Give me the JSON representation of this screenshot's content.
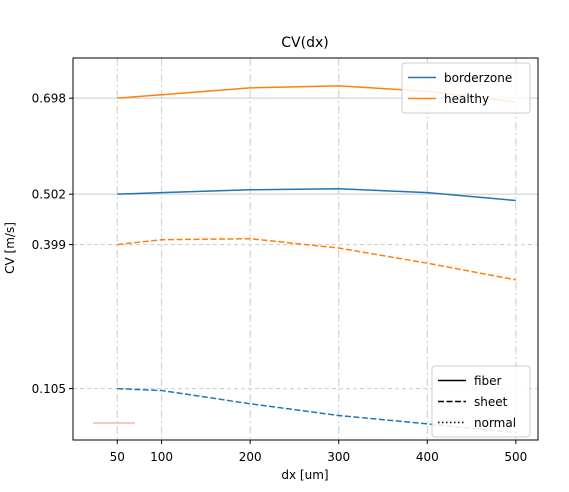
{
  "chart_data": {
    "type": "line",
    "title": "CV(dx)",
    "xlabel": "dx [um]",
    "ylabel": "CV [m/s]",
    "x": [
      50,
      100,
      200,
      300,
      400,
      500
    ],
    "xlim": [
      0,
      525
    ],
    "ylim": [
      0.0,
      0.78
    ],
    "xticks": [
      50,
      100,
      200,
      300,
      400,
      500
    ],
    "yticks": [
      0.105,
      0.399,
      0.502,
      0.698
    ],
    "ytick_labels": [
      "0.105",
      "0.399",
      "0.502",
      "0.698"
    ],
    "series": [
      {
        "name": "borderzone",
        "color": "#1f77b4",
        "linestyle": "solid",
        "values": [
          0.502,
          0.505,
          0.511,
          0.513,
          0.505,
          0.489
        ]
      },
      {
        "name": "healthy",
        "color": "#ff7f0e",
        "linestyle": "solid",
        "values": [
          0.698,
          0.705,
          0.719,
          0.723,
          0.712,
          0.69
        ]
      },
      {
        "name": "",
        "color": "#ff7f0e",
        "linestyle": "dashed",
        "values": [
          0.399,
          0.409,
          0.411,
          0.392,
          0.361,
          0.327
        ]
      },
      {
        "name": "",
        "color": "#1f77b4",
        "linestyle": "dashed",
        "values": [
          0.105,
          0.101,
          0.074,
          0.05,
          0.033,
          0.015
        ]
      }
    ],
    "legends": [
      {
        "position": "top-right",
        "entries": [
          {
            "label": "borderzone",
            "color": "#1f77b4",
            "linestyle": "solid"
          },
          {
            "label": "healthy",
            "color": "#ff7f0e",
            "linestyle": "solid"
          }
        ]
      },
      {
        "position": "lower-right",
        "entries": [
          {
            "label": "fiber",
            "color": "#000000",
            "linestyle": "solid"
          },
          {
            "label": "sheet",
            "color": "#000000",
            "linestyle": "dashed"
          },
          {
            "label": "normal",
            "color": "#000000",
            "linestyle": "dotted"
          }
        ]
      }
    ],
    "grid": {
      "vertical": "dashdot",
      "horizontal_at_yticks": true
    },
    "colors": {
      "axis": "#000000",
      "grid": "#cccccc",
      "faint_mark": "#f4b6b6"
    }
  }
}
